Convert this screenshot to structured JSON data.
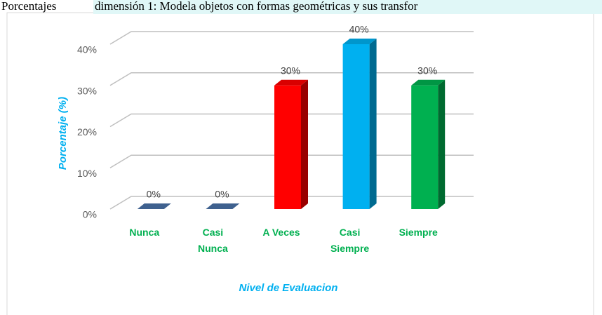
{
  "chart_data": {
    "type": "bar3d",
    "title_lead": "Porcentajes",
    "title": "dimensión 1: Modela objetos con formas geométricas y sus transfor",
    "y_label": "Porcentaje  (%)",
    "x_label": "Nivel de Evaluacion",
    "categories": [
      [
        "Nunca"
      ],
      [
        "Casi",
        "Nunca"
      ],
      [
        "A Veces"
      ],
      [
        "Casi",
        "Siempre"
      ],
      [
        "Siempre"
      ]
    ],
    "values": [
      0,
      0,
      30,
      40,
      30
    ],
    "value_labels": [
      "0%",
      "0%",
      "30%",
      "40%",
      "30%"
    ],
    "colors": [
      "#4a72a8",
      "#4a72a8",
      "#ff0000",
      "#00b0f0",
      "#00b050"
    ],
    "ylim": [
      0,
      40
    ],
    "yticks": [
      {
        "value": 0,
        "label": "0%"
      },
      {
        "value": 10,
        "label": "10%"
      },
      {
        "value": 20,
        "label": "20%"
      },
      {
        "value": 30,
        "label": "30%"
      },
      {
        "value": 40,
        "label": "40%"
      }
    ],
    "grid": true
  }
}
